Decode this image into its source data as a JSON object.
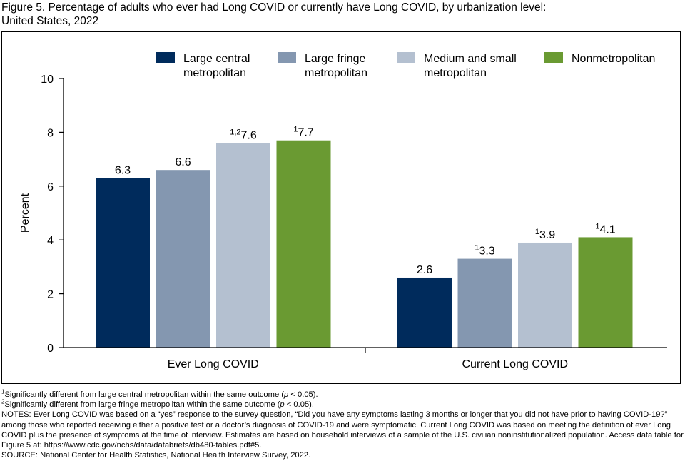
{
  "title_line1": "Figure 5. Percentage of adults who ever had Long COVID or currently have Long COVID, by urbanization level:",
  "title_line2": "United States, 2022",
  "colors": {
    "large_central": "#002b5c",
    "large_fringe": "#8497b0",
    "medium_small": "#b4c0d0",
    "nonmetro": "#6a9a32"
  },
  "chart_data": {
    "type": "bar",
    "categories": [
      "Ever Long COVID",
      "Current Long COVID"
    ],
    "ylabel": "Percent",
    "ylim": [
      0,
      10
    ],
    "yticks": [
      0,
      2,
      4,
      6,
      8,
      10
    ],
    "grid": false,
    "legend_position": "top",
    "series": [
      {
        "name": "Large central metropolitan",
        "legend_lines": [
          "Large central",
          "metropolitan"
        ],
        "color": "#002b5c",
        "values": [
          6.3,
          2.6
        ],
        "sups": [
          "",
          ""
        ],
        "labels": [
          "6.3",
          "2.6"
        ]
      },
      {
        "name": "Large fringe metropolitan",
        "legend_lines": [
          "Large fringe",
          "metropolitan"
        ],
        "color": "#8497b0",
        "values": [
          6.6,
          3.3
        ],
        "sups": [
          "",
          "1"
        ],
        "labels": [
          "6.6",
          "3.3"
        ]
      },
      {
        "name": "Medium and small metropolitan",
        "legend_lines": [
          "Medium and small",
          "metropolitan"
        ],
        "color": "#b4c0d0",
        "values": [
          7.6,
          3.9
        ],
        "sups": [
          "1,2",
          "1"
        ],
        "labels": [
          "7.6",
          "3.9"
        ]
      },
      {
        "name": "Nonmetropolitan",
        "legend_lines": [
          "Nonmetropolitan"
        ],
        "color": "#6a9a32",
        "values": [
          7.7,
          4.1
        ],
        "sups": [
          "1",
          "1"
        ],
        "labels": [
          "7.7",
          "4.1"
        ]
      }
    ]
  },
  "footnotes": {
    "fn1_sup": "1",
    "fn1_text_a": "Significantly different from large central metropolitan within the same outcome (",
    "fn1_p": "p",
    "fn1_text_b": " < 0.05).",
    "fn2_sup": "2",
    "fn2_text_a": "Significantly different from large fringe metropolitan within the same outcome (",
    "fn2_p": "p",
    "fn2_text_b": " < 0.05).",
    "notes": "NOTES: Ever Long COVID was based on a “yes” response to the survey question, “Did you have any symptoms lasting 3 months or longer that you did not have prior to having COVID-19?” among those who reported receiving either a positive test or a doctor’s diagnosis of COVID-19 and were symptomatic. Current Long COVID was based on meeting the definition of ever Long COVID plus the presence of symptoms at the time of interview. Estimates are based on household interviews of a sample of the U.S. civilian noninstitutionalized population. Access data table for Figure 5 at: https://www.cdc.gov/nchs/data/databriefs/db480-tables.pdf#5.",
    "source": "SOURCE: National Center for Health Statistics, National Health Interview Survey, 2022."
  }
}
